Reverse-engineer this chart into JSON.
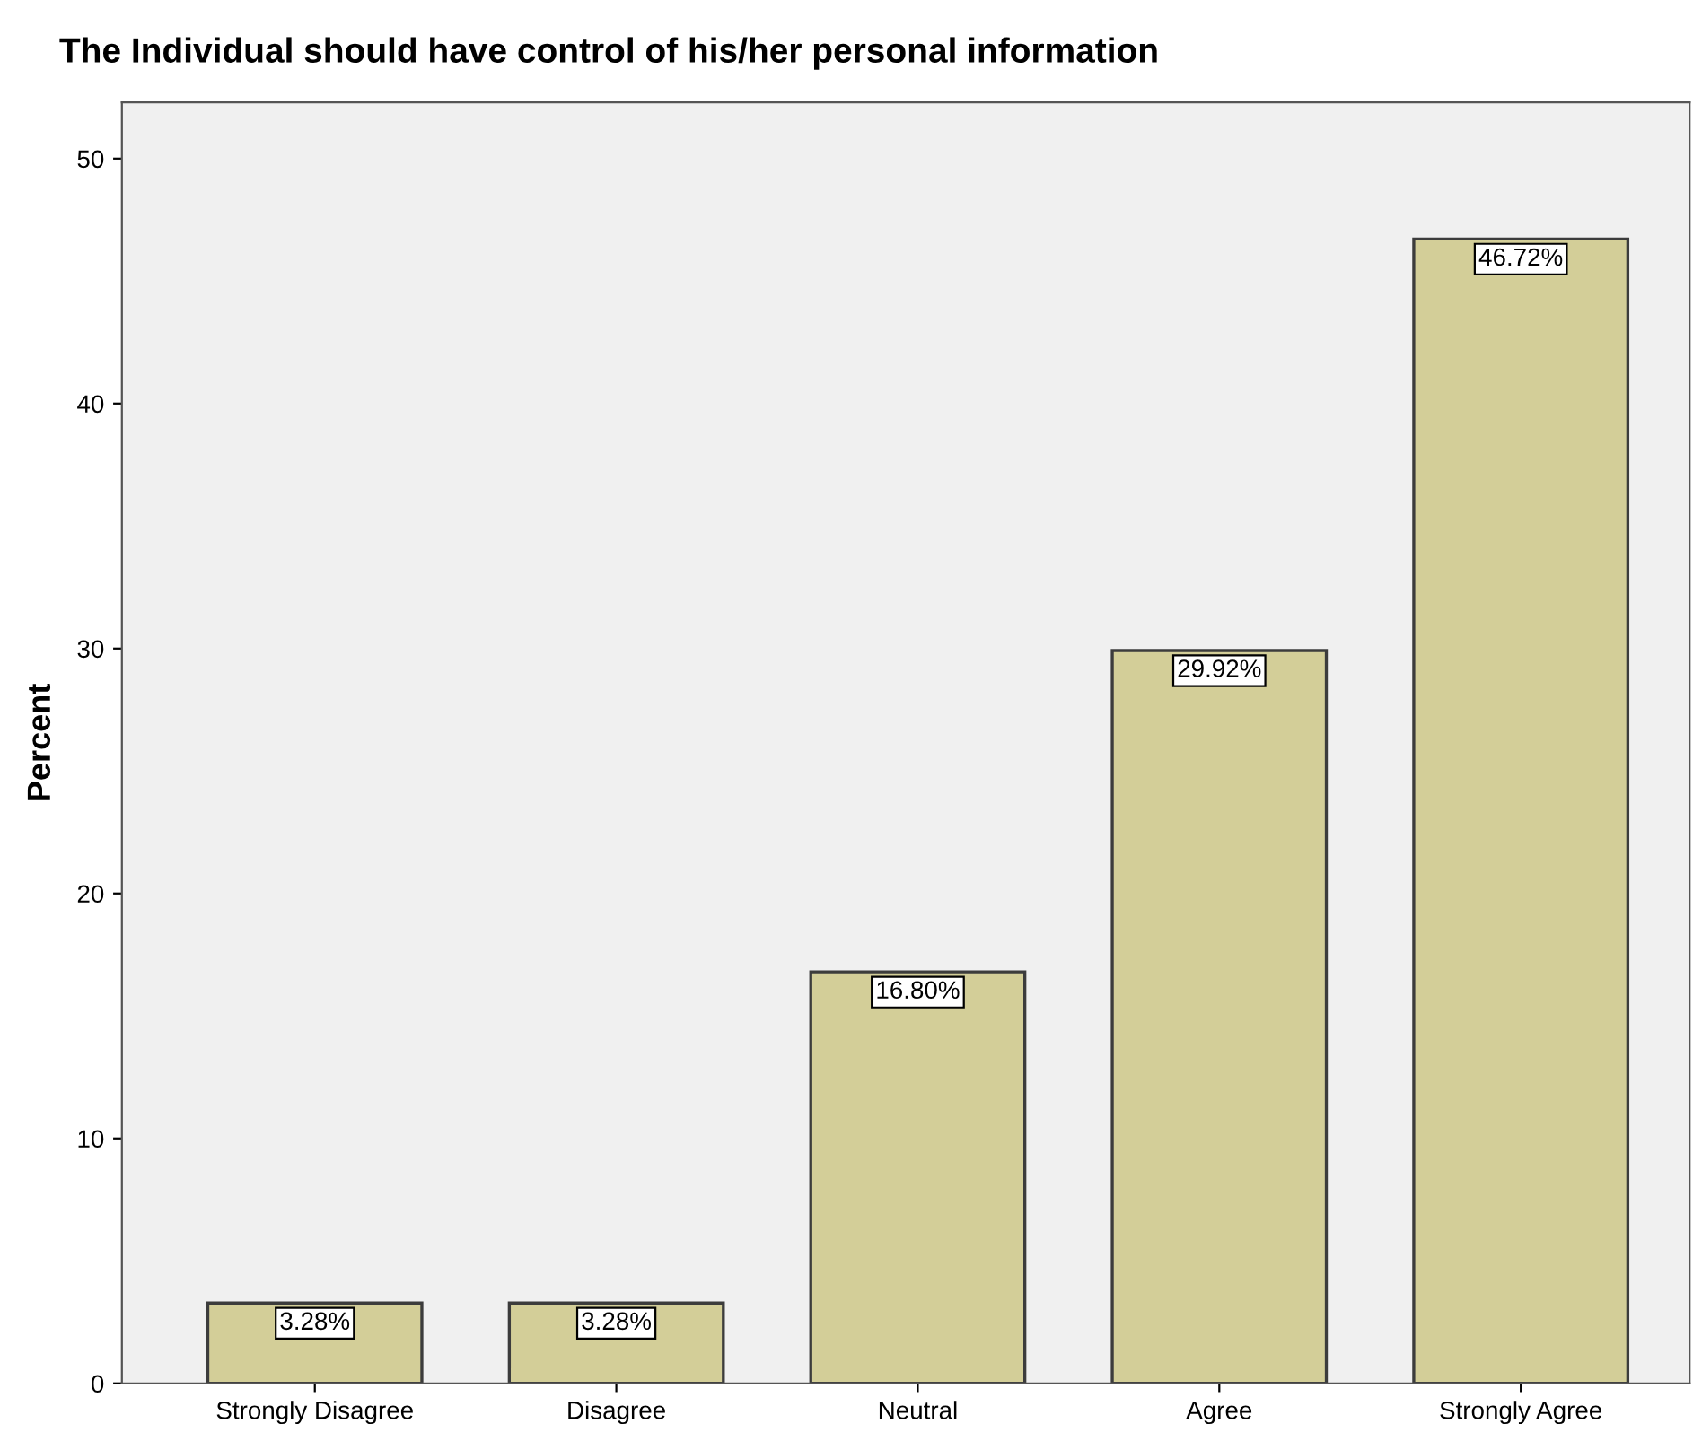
{
  "chart_data": {
    "type": "bar",
    "title": "The Individual should have control of his/her personal information",
    "ylabel": "Percent",
    "categories": [
      "Strongly Disagree",
      "Disagree",
      "Neutral",
      "Agree",
      "Strongly Agree"
    ],
    "values": [
      3.28,
      3.28,
      16.8,
      29.92,
      46.72
    ],
    "value_labels": [
      "3.28%",
      "3.28%",
      "16.80%",
      "29.92%",
      "46.72%"
    ],
    "color": "#d3ce98",
    "ylim": [
      0,
      52.3
    ],
    "yticks": [
      0,
      10,
      20,
      30,
      40,
      50
    ],
    "grid": false
  }
}
